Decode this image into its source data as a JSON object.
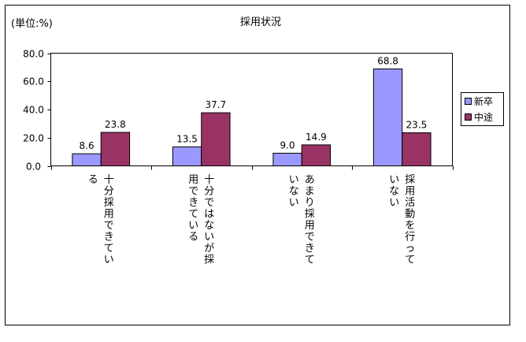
{
  "chart_data": {
    "type": "bar",
    "title": "採用状況",
    "unit_label": "(単位:%)",
    "categories": [
      "十分採用できている",
      "十分ではないが採用できている",
      "あまり採用できていない",
      "採用活動を行っていない"
    ],
    "category_columns": [
      [
        "十分採用できてい",
        "る"
      ],
      [
        "十分ではないが採",
        "用できている"
      ],
      [
        "あまり採用できて",
        "いない"
      ],
      [
        "採用活動を行って",
        "いない"
      ]
    ],
    "series": [
      {
        "name": "新卒",
        "values": [
          8.6,
          13.5,
          9.0,
          68.8
        ],
        "color": "#9999ff",
        "labels": [
          "8.6",
          "13.5",
          "9.0",
          "68.8"
        ]
      },
      {
        "name": "中途",
        "values": [
          23.8,
          37.7,
          14.9,
          23.5
        ],
        "color": "#993366",
        "labels": [
          "23.8",
          "37.7",
          "14.9",
          "23.5"
        ]
      }
    ],
    "ylim": [
      0,
      80
    ],
    "yticks": [
      "0.0",
      "20.0",
      "40.0",
      "60.0",
      "80.0"
    ],
    "grid": false,
    "legend_position": "right"
  }
}
